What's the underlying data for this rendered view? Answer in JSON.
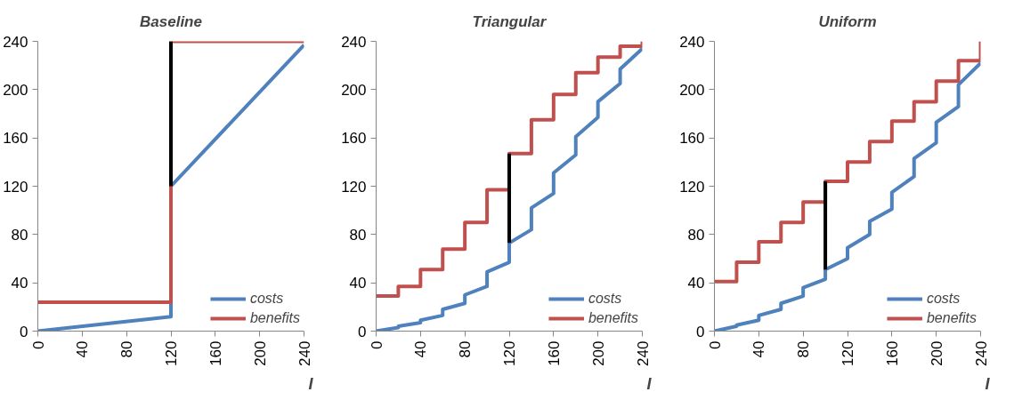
{
  "chart_data": [
    {
      "type": "line",
      "title": "Baseline",
      "xlabel": "I",
      "xlim": [
        0,
        240
      ],
      "xticks": [
        0,
        40,
        80,
        120,
        160,
        200,
        240
      ],
      "ylim": [
        0,
        240
      ],
      "yticks": [
        0,
        40,
        80,
        120,
        160,
        200,
        240
      ],
      "legend": "bottom right",
      "series": [
        {
          "name": "costs",
          "color": "#4f81bd",
          "x": [
            0,
            120,
            120,
            240
          ],
          "values": [
            0,
            12,
            120,
            237
          ]
        },
        {
          "name": "benefits",
          "color": "#c0504d",
          "x": [
            0,
            120,
            120,
            240
          ],
          "values": [
            24,
            24,
            240,
            240
          ]
        },
        {
          "color": "#000000",
          "x": [
            120,
            120
          ],
          "values": [
            120,
            240
          ]
        }
      ]
    },
    {
      "type": "line",
      "title": "Triangular",
      "xlabel": "I",
      "xlim": [
        0,
        240
      ],
      "xticks": [
        0,
        40,
        80,
        120,
        160,
        200,
        240
      ],
      "ylim": [
        0,
        240
      ],
      "yticks": [
        0,
        40,
        80,
        120,
        160,
        200,
        240
      ],
      "legend": "bottom right",
      "series": [
        {
          "name": "costs",
          "color": "#4f81bd",
          "x": [
            0,
            20,
            20,
            40,
            40,
            60,
            60,
            80,
            80,
            100,
            100,
            120,
            120,
            140,
            140,
            160,
            160,
            180,
            180,
            200,
            200,
            220,
            220,
            240
          ],
          "values": [
            0,
            3,
            4,
            7,
            9,
            13,
            18,
            23,
            30,
            37,
            49,
            57,
            73,
            84,
            102,
            114,
            131,
            146,
            161,
            177,
            190,
            205,
            217,
            234
          ]
        },
        {
          "name": "benefits",
          "color": "#c0504d",
          "x": [
            0,
            20,
            20,
            40,
            40,
            60,
            60,
            80,
            80,
            100,
            100,
            120,
            120,
            140,
            140,
            160,
            160,
            180,
            180,
            200,
            200,
            220,
            220,
            240,
            240
          ],
          "values": [
            29,
            29,
            37,
            37,
            51,
            51,
            68,
            68,
            90,
            90,
            117,
            117,
            147,
            147,
            175,
            175,
            196,
            196,
            214,
            214,
            227,
            227,
            236,
            236,
            240
          ]
        },
        {
          "color": "#000000",
          "x": [
            120,
            120
          ],
          "values": [
            73,
            147
          ]
        }
      ]
    },
    {
      "type": "line",
      "title": "Uniform",
      "xlabel": "I",
      "xlim": [
        0,
        240
      ],
      "xticks": [
        0,
        40,
        80,
        120,
        160,
        200,
        240
      ],
      "ylim": [
        0,
        240
      ],
      "yticks": [
        0,
        40,
        80,
        120,
        160,
        200,
        240
      ],
      "legend": "bottom right",
      "series": [
        {
          "name": "costs",
          "color": "#4f81bd",
          "x": [
            0,
            20,
            20,
            40,
            40,
            60,
            60,
            80,
            80,
            100,
            100,
            120,
            120,
            140,
            140,
            160,
            160,
            180,
            180,
            200,
            200,
            220,
            220,
            240
          ],
          "values": [
            0,
            4,
            5,
            9,
            13,
            18,
            23,
            29,
            36,
            43,
            51,
            60,
            69,
            80,
            91,
            101,
            115,
            128,
            143,
            156,
            173,
            186,
            204,
            222
          ]
        },
        {
          "name": "benefits",
          "color": "#c0504d",
          "x": [
            0,
            20,
            20,
            40,
            40,
            60,
            60,
            80,
            80,
            100,
            100,
            120,
            120,
            140,
            140,
            160,
            160,
            180,
            180,
            200,
            200,
            220,
            220,
            240,
            240
          ],
          "values": [
            41,
            41,
            57,
            57,
            74,
            74,
            90,
            90,
            107,
            107,
            124,
            124,
            140,
            140,
            157,
            157,
            174,
            174,
            190,
            190,
            207,
            207,
            224,
            224,
            240
          ]
        },
        {
          "color": "#000000",
          "x": [
            100,
            100
          ],
          "values": [
            51,
            124
          ]
        }
      ]
    }
  ]
}
